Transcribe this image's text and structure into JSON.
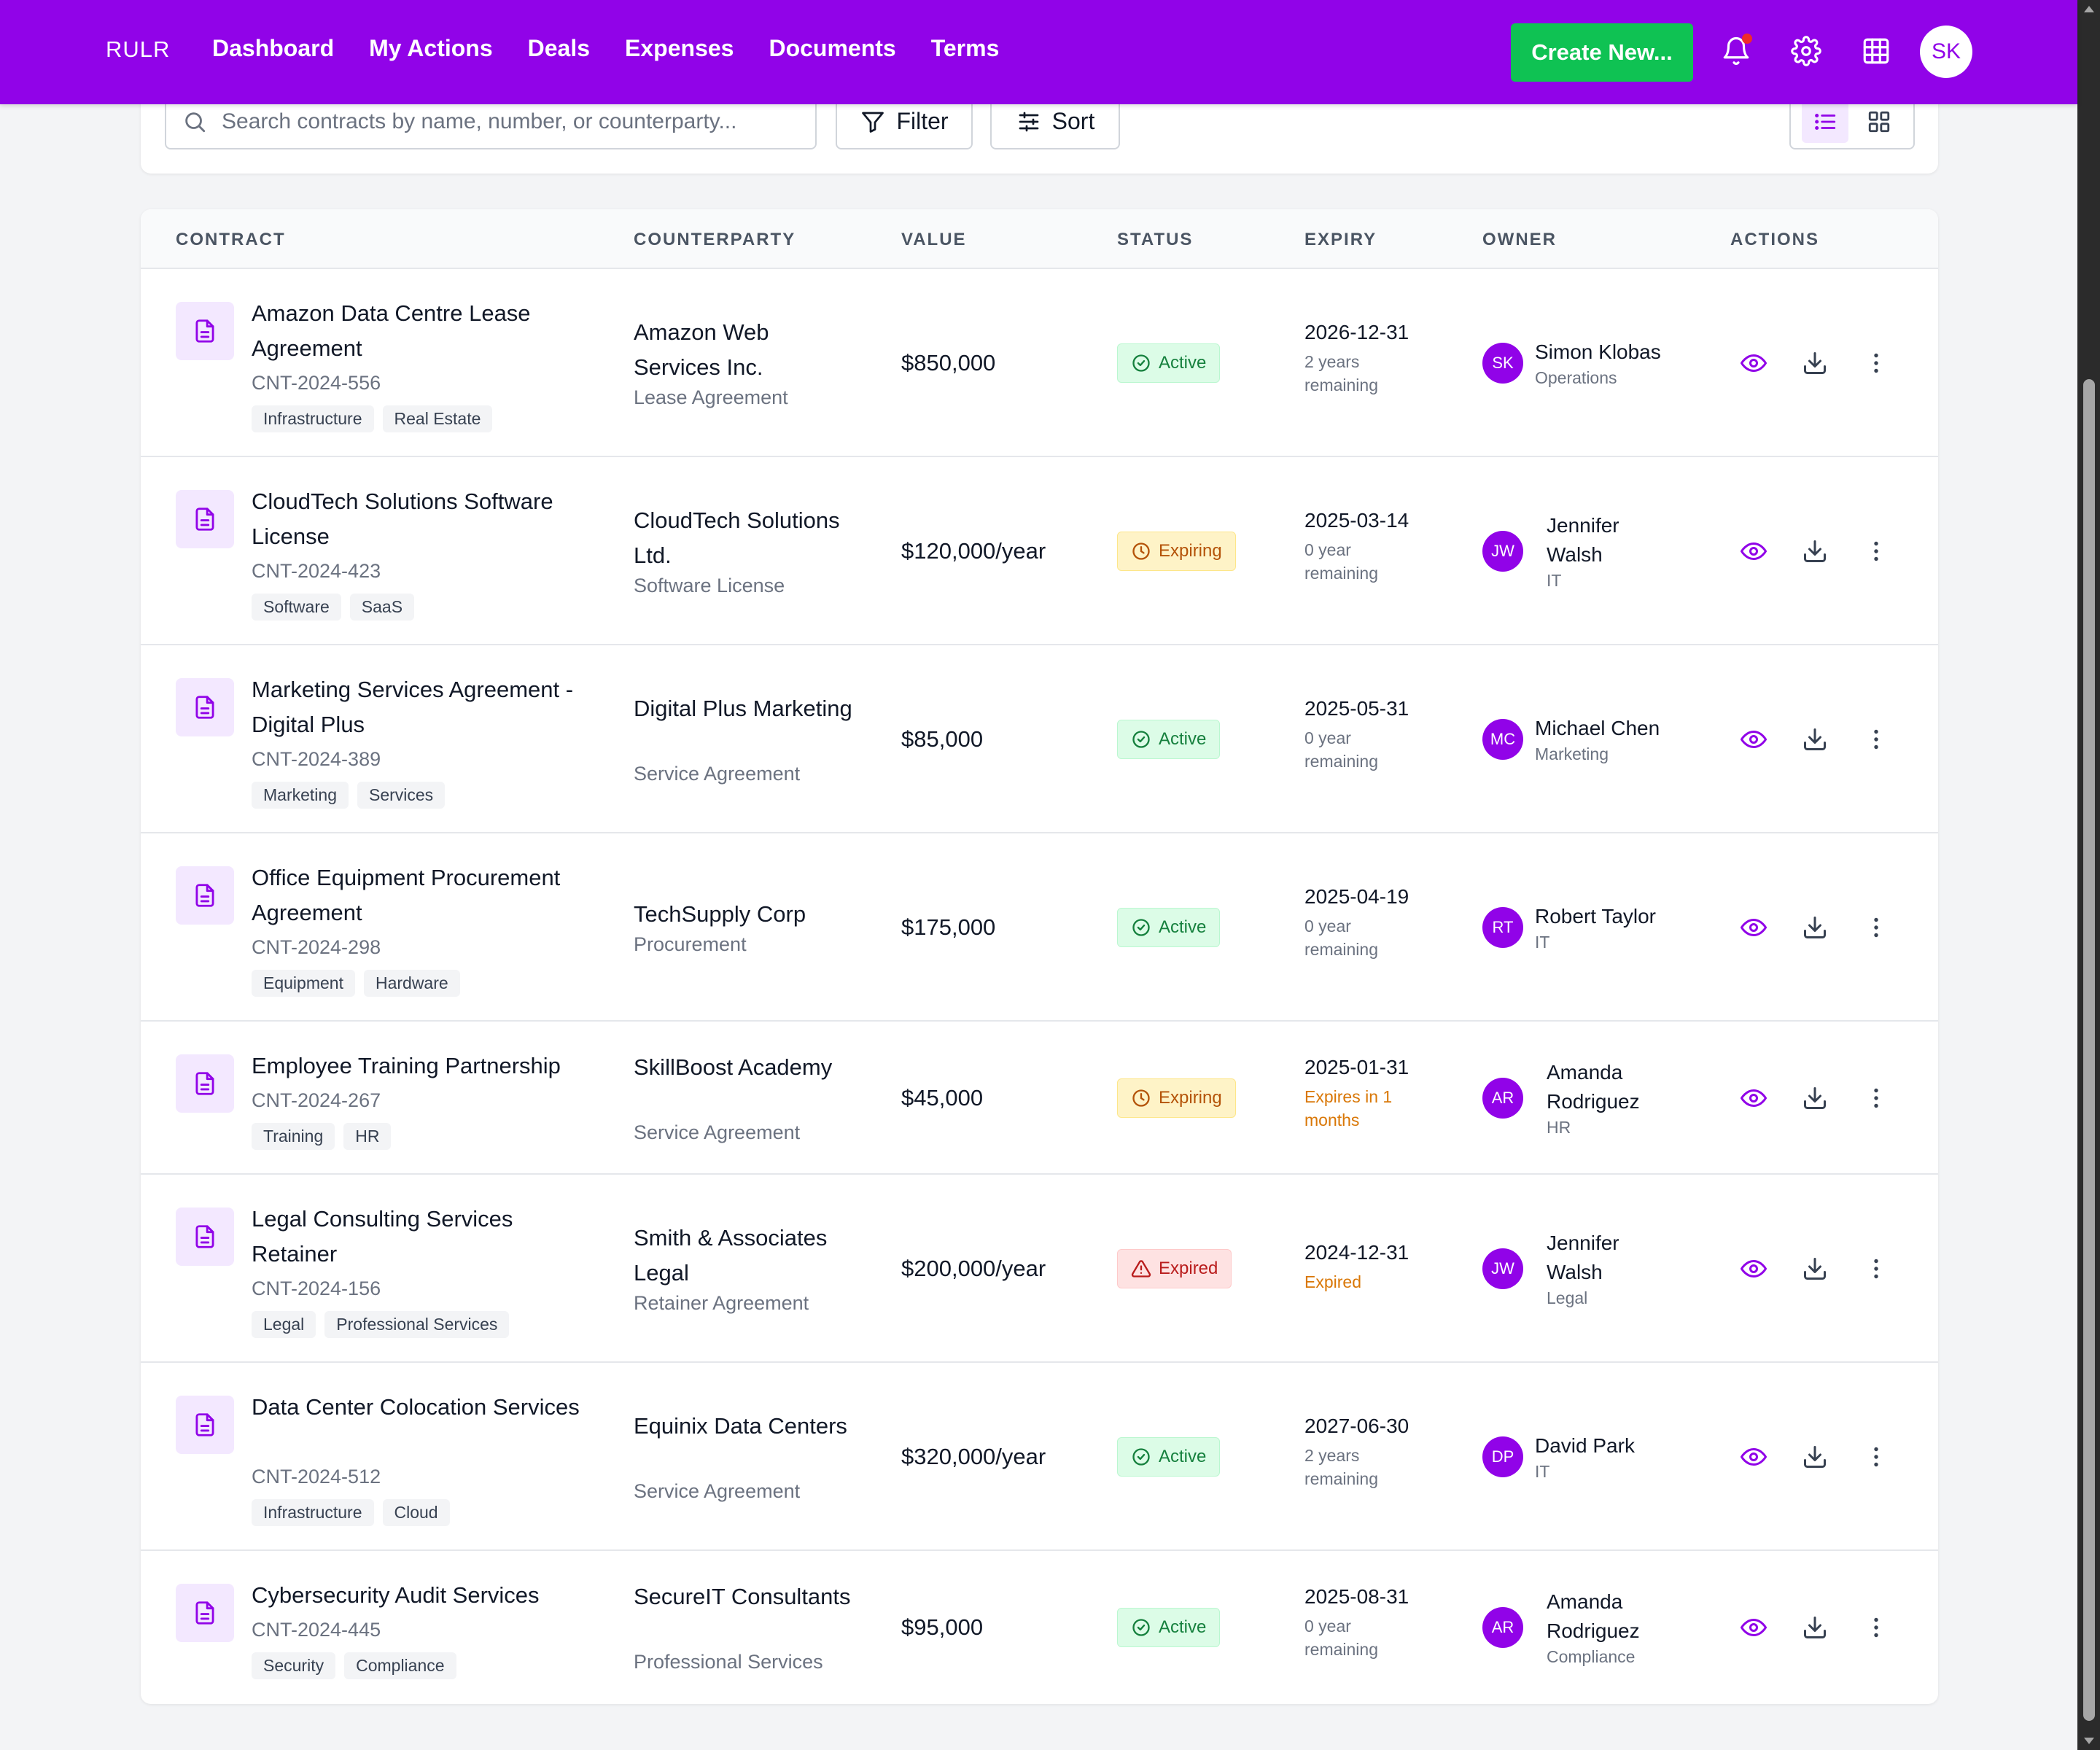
{
  "nav": {
    "brand": "RULR",
    "links": [
      "Dashboard",
      "My Actions",
      "Deals",
      "Expenses",
      "Documents",
      "Terms"
    ],
    "create_label": "Create New...",
    "avatar_initials": "SK"
  },
  "toolbar": {
    "search_placeholder": "Search contracts by name, number, or counterparty...",
    "filter_label": "Filter",
    "sort_label": "Sort",
    "view_mode": "list"
  },
  "table": {
    "headers": [
      "CONTRACT",
      "COUNTERPARTY",
      "VALUE",
      "STATUS",
      "EXPIRY",
      "OWNER",
      "ACTIONS"
    ],
    "rows": [
      {
        "name": "Amazon Data Centre Lease Agreement",
        "number": "CNT-2024-556",
        "tags": [
          "Infrastructure",
          "Real Estate"
        ],
        "counterparty": "Amazon Web Services Inc.",
        "type": "Lease Agreement",
        "value": "$850,000",
        "status": "Active",
        "expiry": "2026-12-31",
        "remaining": "2 years remaining",
        "owner_initials": "SK",
        "owner": "Simon Klobas",
        "dept": "Operations"
      },
      {
        "name": "CloudTech Solutions Software License",
        "number": "CNT-2024-423",
        "tags": [
          "Software",
          "SaaS"
        ],
        "counterparty": "CloudTech Solutions Ltd.",
        "type": "Software License",
        "value": "$120,000/year",
        "status": "Expiring",
        "expiry": "2025-03-14",
        "remaining": "0 year remaining",
        "owner_initials": "JW",
        "owner": "Jennifer Walsh",
        "dept": "IT"
      },
      {
        "name": "Marketing Services Agreement - Digital Plus",
        "number": "CNT-2024-389",
        "tags": [
          "Marketing",
          "Services"
        ],
        "counterparty": "Digital Plus Marketing",
        "type": "Service Agreement",
        "value": "$85,000",
        "status": "Active",
        "expiry": "2025-05-31",
        "remaining": "0 year remaining",
        "owner_initials": "MC",
        "owner": "Michael Chen",
        "dept": "Marketing"
      },
      {
        "name": "Office Equipment Procurement Agreement",
        "number": "CNT-2024-298",
        "tags": [
          "Equipment",
          "Hardware"
        ],
        "counterparty": "TechSupply Corp",
        "type": "Procurement",
        "value": "$175,000",
        "status": "Active",
        "expiry": "2025-04-19",
        "remaining": "0 year remaining",
        "owner_initials": "RT",
        "owner": "Robert Taylor",
        "dept": "IT"
      },
      {
        "name": "Employee Training Partnership",
        "number": "CNT-2024-267",
        "tags": [
          "Training",
          "HR"
        ],
        "counterparty": "SkillBoost Academy",
        "type": "Service Agreement",
        "value": "$45,000",
        "status": "Expiring",
        "expiry": "2025-01-31",
        "remaining": "Expires in 1 months",
        "owner_initials": "AR",
        "owner": "Amanda Rodriguez",
        "dept": "HR"
      },
      {
        "name": "Legal Consulting Services Retainer",
        "number": "CNT-2024-156",
        "tags": [
          "Legal",
          "Professional Services"
        ],
        "counterparty": "Smith & Associates Legal",
        "type": "Retainer Agreement",
        "value": "$200,000/year",
        "status": "Expired",
        "expiry": "2024-12-31",
        "remaining": "Expired",
        "owner_initials": "JW",
        "owner": "Jennifer Walsh",
        "dept": "Legal"
      },
      {
        "name": "Data Center Colocation Services",
        "number": "CNT-2024-512",
        "tags": [
          "Infrastructure",
          "Cloud"
        ],
        "counterparty": "Equinix Data Centers",
        "type": "Service Agreement",
        "value": "$320,000/year",
        "status": "Active",
        "expiry": "2027-06-30",
        "remaining": "2 years remaining",
        "owner_initials": "DP",
        "owner": "David Park",
        "dept": "IT"
      },
      {
        "name": "Cybersecurity Audit Services",
        "number": "CNT-2024-445",
        "tags": [
          "Security",
          "Compliance"
        ],
        "counterparty": "SecureIT Consultants",
        "type": "Professional Services",
        "value": "$95,000",
        "status": "Active",
        "expiry": "2025-08-31",
        "remaining": "0 year remaining",
        "owner_initials": "AR",
        "owner": "Amanda Rodriguez",
        "dept": "Compliance"
      }
    ]
  },
  "colors": {
    "brand": "#9103e8",
    "create_button": "#0fc253",
    "active": "#15803d",
    "expiring": "#b45309",
    "expired": "#b91c1c"
  }
}
